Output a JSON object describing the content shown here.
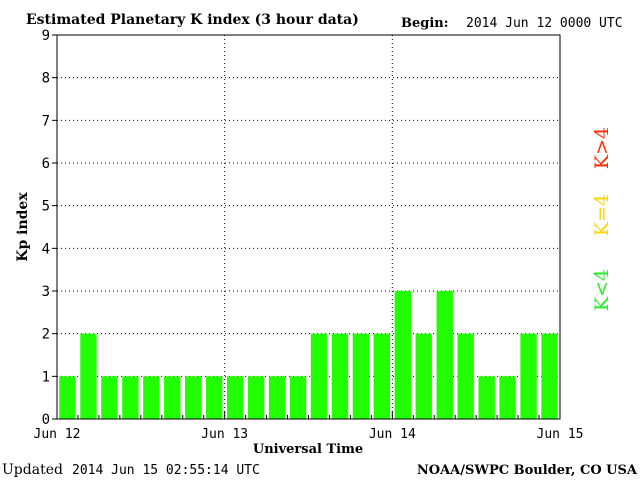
{
  "header": {
    "title": "Estimated Planetary K index (3 hour data)",
    "begin_label": "Begin:",
    "begin_value": "2014 Jun 12 0000 UTC"
  },
  "footer": {
    "updated_label": "Updated",
    "updated_value": "2014 Jun 15 02:55:14 UTC",
    "source": "NOAA/SWPC Boulder, CO USA"
  },
  "legend": {
    "k_gt4": {
      "text": "K>4",
      "color": "#ff2a00"
    },
    "k_eq4": {
      "text": "K=4",
      "color": "#ffd400"
    },
    "k_lt4": {
      "text": "K<4",
      "color": "#22ee22"
    }
  },
  "chart_data": {
    "type": "bar",
    "ylabel": "Kp index",
    "xlabel": "Universal Time",
    "ylim": [
      0,
      9
    ],
    "yticks": [
      0,
      1,
      2,
      3,
      4,
      5,
      6,
      7,
      8,
      9
    ],
    "x_tick_labels": [
      "Jun 12",
      "Jun 13",
      "Jun 14",
      "Jun 15"
    ],
    "bins_per_day": 8,
    "grid": true,
    "bar_color": "#22ff00",
    "values": [
      1,
      2,
      1,
      1,
      1,
      1,
      1,
      1,
      1,
      1,
      1,
      1,
      2,
      2,
      2,
      2,
      3,
      2,
      3,
      2,
      1,
      1,
      2,
      2
    ]
  }
}
